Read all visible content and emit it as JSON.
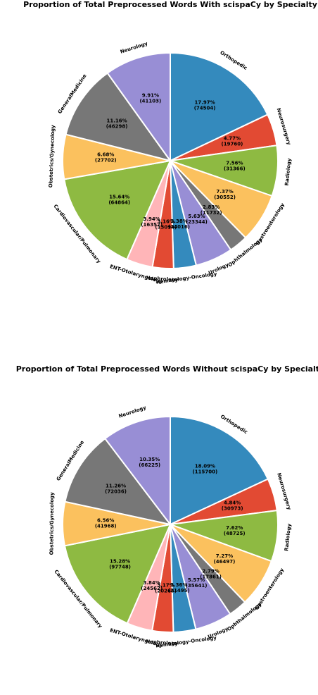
{
  "chart_data": [
    {
      "type": "pie",
      "title": "Proportion of Total Preprocessed Words With scispaCy by Specialty",
      "categories": [
        "Orthopedic",
        "Neurosurgery",
        "Radiology",
        "Gastroenterology",
        "Ophthalmology",
        "Urology",
        "Hematology-Oncology",
        "Nephrology",
        "ENT-Otolaryngology",
        "Cardiovascular/Pulmonary",
        "Obstetrics/Gynecology",
        "GeneralMedicine",
        "Neurology"
      ],
      "values": [
        74504,
        19760,
        31366,
        30552,
        11732,
        23344,
        14016,
        13094,
        16352,
        64864,
        27702,
        46298,
        41103
      ],
      "percent_labels": [
        "17.97%",
        "4.77%",
        "7.56%",
        "7.37%",
        "2.83%",
        "5.63%",
        "3.38%",
        "3.16%",
        "3.94%",
        "15.64%",
        "6.68%",
        "11.16%",
        "9.91%"
      ],
      "count_labels": [
        "(74504)",
        "(19760)",
        "(31366)",
        "(30552)",
        "(11732)",
        "(23344)",
        "(14016)",
        "(13094)",
        "(16352)",
        "(64864)",
        "(27702)",
        "(46298)",
        "(41103)"
      ],
      "colors": [
        "#348abd",
        "#e24a33",
        "#8eba42",
        "#fbc15e",
        "#777777",
        "#988ed5",
        "#348abd",
        "#e24a33",
        "#ffb5b8",
        "#8eba42",
        "#fbc15e",
        "#777777",
        "#988ed5"
      ],
      "start_angle_deg": 90,
      "direction": "clockwise"
    },
    {
      "type": "pie",
      "title": "Proportion of Total Preprocessed Words Without scispaCy by Specialty",
      "categories": [
        "Orthopedic",
        "Neurosurgery",
        "Radiology",
        "Gastroenterology",
        "Ophthalmology",
        "Urology",
        "Hematology-Oncology",
        "Nephrology",
        "ENT-Otolaryngology",
        "Cardiovascular/Pulmonary",
        "Obstetrics/Gynecology",
        "GeneralMedicine",
        "Neurology"
      ],
      "values": [
        115700,
        30973,
        48725,
        46497,
        17861,
        35641,
        21495,
        20265,
        24562,
        97748,
        41968,
        72036,
        66225
      ],
      "percent_labels": [
        "18.09%",
        "4.84%",
        "7.62%",
        "7.27%",
        "2.79%",
        "5.57%",
        "3.36%",
        "3.17%",
        "3.84%",
        "15.28%",
        "6.56%",
        "11.26%",
        "10.35%"
      ],
      "count_labels": [
        "(115700)",
        "(30973)",
        "(48725)",
        "(46497)",
        "(17861)",
        "(35641)",
        "(21495)",
        "(20265)",
        "(24562)",
        "(97748)",
        "(41968)",
        "(72036)",
        "(66225)"
      ],
      "colors": [
        "#348abd",
        "#e24a33",
        "#8eba42",
        "#fbc15e",
        "#777777",
        "#988ed5",
        "#348abd",
        "#e24a33",
        "#ffb5b8",
        "#8eba42",
        "#fbc15e",
        "#777777",
        "#988ed5"
      ],
      "start_angle_deg": 90,
      "direction": "clockwise"
    }
  ]
}
